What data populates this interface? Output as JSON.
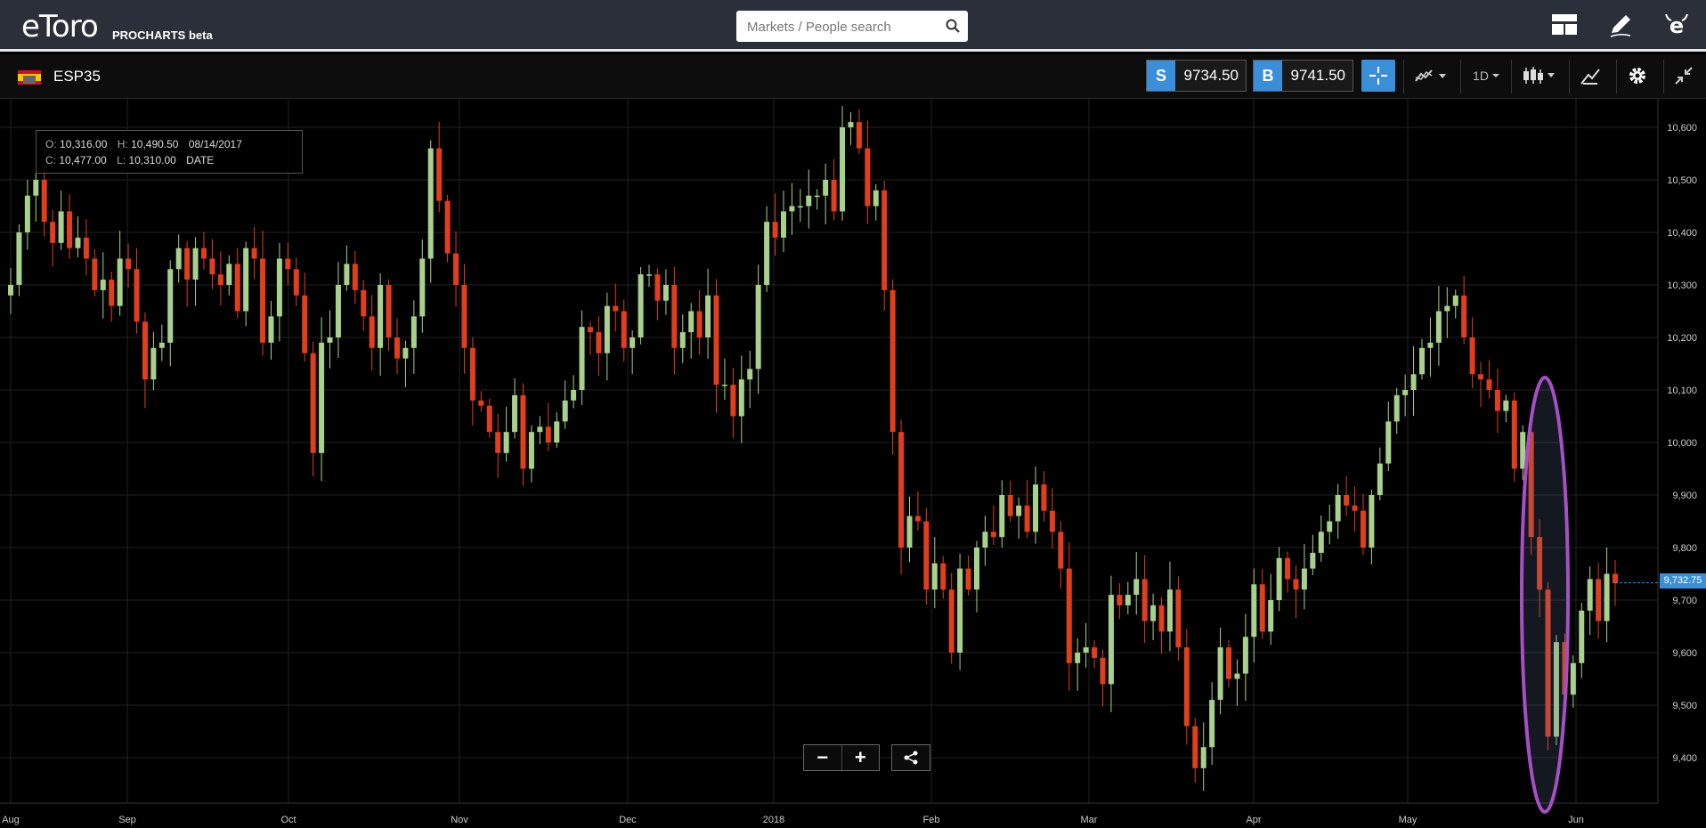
{
  "app": {
    "logo": "eToro",
    "product": "PROCHARTS",
    "tag": "beta"
  },
  "search": {
    "placeholder": "Markets / People search"
  },
  "instrument": {
    "symbol": "ESP35"
  },
  "quotes": {
    "sell_label": "S",
    "sell_price": "9734.50",
    "buy_label": "B",
    "buy_price": "9741.50"
  },
  "toolbar": {
    "timeframe": "1D"
  },
  "ohlc": {
    "o_label": "O:",
    "o": "10,316.00",
    "h_label": "H:",
    "h": "10,490.50",
    "date": "08/14/2017",
    "c_label": "C:",
    "c": "10,477.00",
    "l_label": "L:",
    "l": "10,310.00",
    "date_label": "DATE"
  },
  "current_price": "9,732.75",
  "colors": {
    "up": "#a9d18e",
    "down": "#e03e1c",
    "accent": "#3b8fd8",
    "highlight": "#a64fc4"
  },
  "chart_data": {
    "type": "candlestick",
    "x_ticks": [
      "Aug",
      "Sep",
      "Oct",
      "Nov",
      "Dec",
      "2018",
      "Feb",
      "Mar",
      "Apr",
      "May",
      "Jun"
    ],
    "y_ticks": [
      "10,600",
      "10,500",
      "10,400",
      "10,300",
      "10,200",
      "10,100",
      "10,000",
      "9,900",
      "9,800",
      "9,700",
      "9,600",
      "9,500",
      "9,400"
    ],
    "ylim": [
      9300,
      10700
    ],
    "grid": true,
    "close": [
      10300,
      10400,
      10470,
      10500,
      10420,
      10380,
      10440,
      10370,
      10390,
      10350,
      10290,
      10310,
      10260,
      10350,
      10330,
      10230,
      10120,
      10180,
      10190,
      10330,
      10370,
      10310,
      10370,
      10350,
      10320,
      10300,
      10340,
      10250,
      10370,
      10350,
      10190,
      10240,
      10350,
      10330,
      10280,
      10170,
      9980,
      10190,
      10200,
      10300,
      10340,
      10290,
      10240,
      10180,
      10300,
      10200,
      10160,
      10180,
      10240,
      10350,
      10560,
      10460,
      10360,
      10300,
      10180,
      10080,
      10070,
      10020,
      9980,
      10020,
      10090,
      9950,
      10020,
      10030,
      10000,
      10040,
      10080,
      10100,
      10220,
      10210,
      10170,
      10260,
      10250,
      10180,
      10200,
      10320,
      10320,
      10270,
      10300,
      10180,
      10210,
      10250,
      10200,
      10280,
      10110,
      10110,
      10050,
      10120,
      10140,
      10300,
      10420,
      10390,
      10440,
      10450,
      10450,
      10470,
      10470,
      10500,
      10440,
      10600,
      10610,
      10560,
      10450,
      10480,
      10290,
      10020,
      9800,
      9860,
      9850,
      9720,
      9770,
      9720,
      9600,
      9760,
      9720,
      9800,
      9830,
      9820,
      9900,
      9860,
      9880,
      9830,
      9920,
      9870,
      9830,
      9760,
      9580,
      9600,
      9610,
      9590,
      9540,
      9710,
      9690,
      9710,
      9740,
      9660,
      9690,
      9640,
      9720,
      9610,
      9460,
      9380,
      9420,
      9510,
      9610,
      9550,
      9560,
      9630,
      9730,
      9640,
      9700,
      9780,
      9740,
      9720,
      9760,
      9790,
      9830,
      9850,
      9900,
      9880,
      9870,
      9800,
      9900,
      9960,
      10040,
      10090,
      10100,
      10130,
      10180,
      10190,
      10250,
      10260,
      10280,
      10200,
      10130,
      10120,
      10100,
      10060,
      10080,
      9950,
      10020,
      9820,
      9720,
      9440,
      9620,
      9520,
      9580,
      9680,
      9740,
      9660,
      9750,
      9732
    ]
  }
}
